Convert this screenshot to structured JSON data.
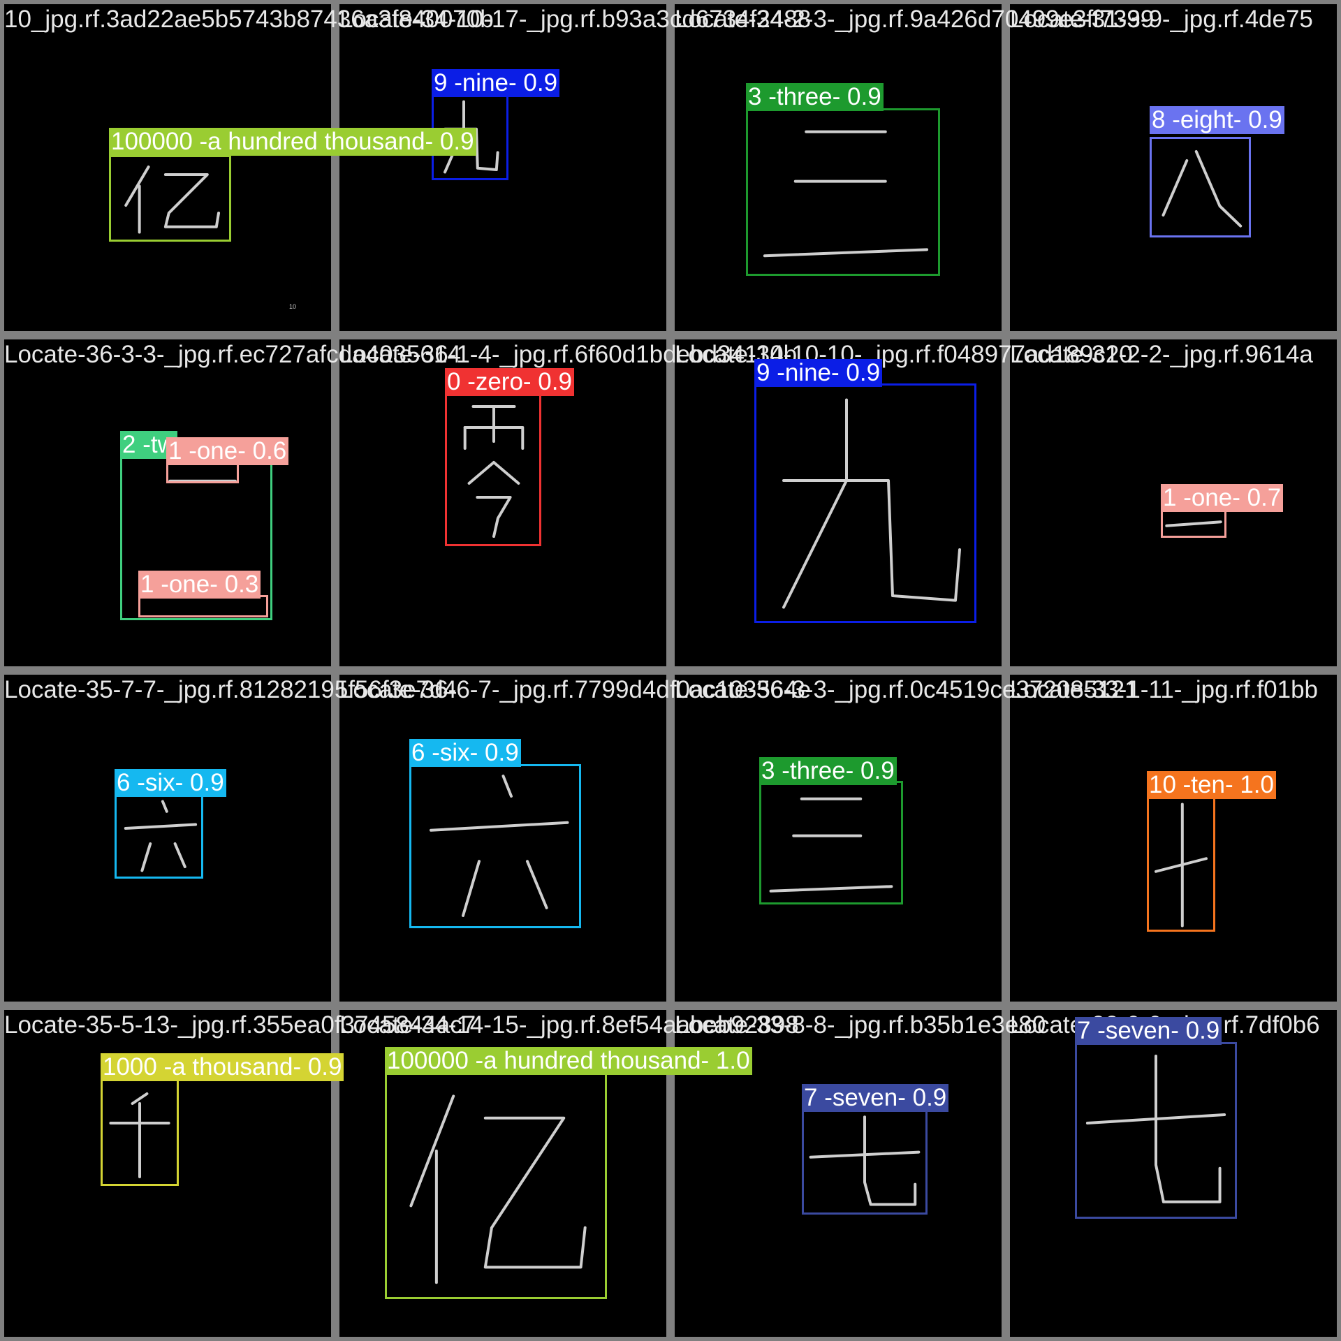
{
  "tiles": [
    {
      "title": "10_jpg.rf.3ad22ae5b5743b87436a3f840070b",
      "glyph": "yi-stroke-icon",
      "mark": "10",
      "detections": [
        {
          "label": "100000 -a hundred thousand- 0.9",
          "color": "#9acd32",
          "text_color": "#ffffff"
        }
      ]
    },
    {
      "title": "Locate-34-10-17-_jpg.rf.b93a3cd6734f2488",
      "glyph": "jiu-stroke-icon",
      "detections": [
        {
          "label": "9 -nine- 0.9",
          "color": "#0b1ee6",
          "text_color": "#ffffff"
        }
      ]
    },
    {
      "title": "Locate-34-2-3-_jpg.rf.9a426d70499e3ff7399",
      "glyph": "san-stroke-icon",
      "detections": [
        {
          "label": "3 -three- 0.9",
          "color": "#1d9a2e",
          "text_color": "#ffffff"
        }
      ]
    },
    {
      "title": "Locate-31-3-9-_jpg.rf.4de75",
      "glyph": "ba-stroke-icon",
      "detections": [
        {
          "label": "8 -eight- 0.9",
          "color": "#6a73f0",
          "text_color": "#ffffff"
        }
      ]
    },
    {
      "title": "Locate-36-3-3-_jpg.rf.ec727afcda4035614",
      "glyph": "er-stroke-icon",
      "detections": [
        {
          "label": "2 -tw",
          "color": "#3fcf7f",
          "text_color": "#ffffff"
        },
        {
          "label": "1 -one- 0.6",
          "color": "#f5a09a",
          "text_color": "#ffffff"
        },
        {
          "label": "1 -one- 0.3",
          "color": "#f5a09a",
          "text_color": "#ffffff"
        }
      ]
    },
    {
      "title": "Locate-36-1-4-_jpg.rf.6f60d1bdebd34110b",
      "glyph": "ling-stroke-icon",
      "detections": [
        {
          "label": "0 -zero- 0.9",
          "color": "#f03232",
          "text_color": "#ffffff"
        }
      ]
    },
    {
      "title": "Locate-34-10-10-_jpg.rf.f048977ad189c20",
      "glyph": "jiu-stroke-icon",
      "detections": [
        {
          "label": "9 -nine- 0.9",
          "color": "#0b1ee6",
          "text_color": "#ffffff"
        }
      ]
    },
    {
      "title": "Locate-31-2-2-_jpg.rf.9614a",
      "glyph": "yi-horizontal-stroke-icon",
      "detections": [
        {
          "label": "1 -one- 0.7",
          "color": "#f5a09a",
          "text_color": "#ffffff"
        }
      ]
    },
    {
      "title": "Locate-35-7-7-_jpg.rf.81282195f56f3e7d4",
      "glyph": "liu-stroke-icon",
      "detections": [
        {
          "label": "6 -six- 0.9",
          "color": "#15b8f0",
          "text_color": "#ffffff"
        }
      ]
    },
    {
      "title": "Locate-36-6-7-_jpg.rf.7799d4df0ac103564e",
      "glyph": "liu-stroke-icon",
      "detections": [
        {
          "label": "6 -six- 0.9",
          "color": "#15b8f0",
          "text_color": "#ffffff"
        }
      ]
    },
    {
      "title": "Locate-36-3-3-_jpg.rf.0c4519ce372085121",
      "glyph": "san-stroke-icon",
      "detections": [
        {
          "label": "3 -three- 0.9",
          "color": "#1d9a2e",
          "text_color": "#ffffff"
        }
      ]
    },
    {
      "title": "Locate-33-1-11-_jpg.rf.f01bb",
      "glyph": "shi-stroke-icon",
      "detections": [
        {
          "label": "10 -ten- 1.0",
          "color": "#f5741e",
          "text_color": "#ffffff"
        }
      ]
    },
    {
      "title": "Locate-35-5-13-_jpg.rf.355ea0f3745844ac7",
      "glyph": "qian-stroke-icon",
      "detections": [
        {
          "label": "1000 -a thousand- 0.9",
          "color": "#d4d433",
          "text_color": "#ffffff"
        }
      ]
    },
    {
      "title": "Locate-34-14-15-_jpg.rf.8ef54aabeb92898",
      "glyph": "yi-stroke-icon",
      "detections": [
        {
          "label": "100000 -a hundred thousand- 1.0",
          "color": "#9acd32",
          "text_color": "#ffffff"
        }
      ]
    },
    {
      "title": "Locate-33-8-8-_jpg.rf.b35b1e3e80",
      "glyph": "qi-stroke-icon",
      "detections": [
        {
          "label": "7 -seven- 0.9",
          "color": "#3b4aa0",
          "text_color": "#ffffff"
        }
      ]
    },
    {
      "title": "Locate-33-9-9-_jpg.rf.7df0b6",
      "glyph": "qi-stroke-icon",
      "detections": [
        {
          "label": "7 -seven- 0.9",
          "color": "#3b4aa0",
          "text_color": "#ffffff"
        }
      ]
    }
  ]
}
